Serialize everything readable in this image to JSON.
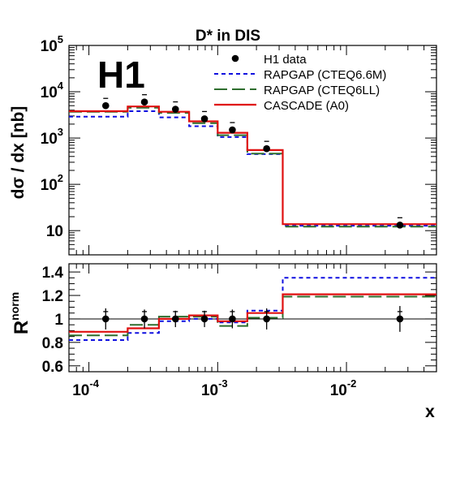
{
  "figure": {
    "title": "D* in DIS",
    "logo": "H1"
  },
  "chart_data": [
    {
      "type": "line",
      "panel": "upper",
      "ylabel": "dσ / dx [nb]",
      "xlabel": "",
      "xscale": "log",
      "yscale": "log",
      "xlim": [
        7e-05,
        0.05
      ],
      "ylim": [
        3.0,
        100000
      ],
      "legend_position": "top-right",
      "bin_edges": [
        7e-05,
        0.0002,
        0.00035,
        0.0006,
        0.001,
        0.0017,
        0.0032,
        0.05
      ],
      "series": [
        {
          "name": "H1 data",
          "style": "points",
          "color": "#000000",
          "x": [
            0.000135,
            0.00027,
            0.00047,
            0.00079,
            0.0013,
            0.0024,
            0.026
          ],
          "y": [
            5000,
            6000,
            4200,
            2600,
            1500,
            590,
            13.2
          ],
          "err_low": [
            4300,
            5300,
            3800,
            2350,
            1350,
            530,
            12.0
          ],
          "err_high": [
            5700,
            6700,
            4600,
            2850,
            1650,
            650,
            14.4
          ]
        },
        {
          "name": "RAPGAP (CTEQ6.6M)",
          "style": "short-dash",
          "color": "#1010e0",
          "values": [
            2900,
            3800,
            2800,
            1800,
            1050,
            450,
            12.8
          ]
        },
        {
          "name": "RAPGAP (CTEQ6LL)",
          "style": "long-dash",
          "color": "#2e6e2e",
          "values": [
            3700,
            4500,
            3500,
            2100,
            1150,
            460,
            12.2
          ]
        },
        {
          "name": "CASCADE (A0)",
          "style": "solid",
          "color": "#e01010",
          "values": [
            3800,
            4800,
            3700,
            2300,
            1300,
            550,
            13.8
          ]
        }
      ],
      "yticks": [
        {
          "value": 10,
          "label": "10"
        },
        {
          "value": 100,
          "label": "10",
          "exp": "2"
        },
        {
          "value": 1000,
          "label": "10",
          "exp": "3"
        },
        {
          "value": 10000,
          "label": "10",
          "exp": "4"
        },
        {
          "value": 100000,
          "label": "10",
          "exp": "5"
        }
      ]
    },
    {
      "type": "line",
      "panel": "lower",
      "ylabel": "R",
      "ylabel_sup": "norm",
      "xlabel": "x",
      "xscale": "log",
      "yscale": "linear",
      "xlim": [
        7e-05,
        0.05
      ],
      "ylim": [
        0.55,
        1.47
      ],
      "reference_line": 1.0,
      "bin_edges": [
        7e-05,
        0.0002,
        0.00035,
        0.0006,
        0.001,
        0.0017,
        0.0032,
        0.05
      ],
      "series": [
        {
          "name": "H1 data",
          "style": "points",
          "color": "#000000",
          "x": [
            0.000135,
            0.00027,
            0.00047,
            0.00079,
            0.0013,
            0.0024,
            0.026
          ],
          "y": [
            1.0,
            1.0,
            1.0,
            1.0,
            1.0,
            1.0,
            1.0
          ],
          "err_low": [
            0.91,
            0.92,
            0.93,
            0.93,
            0.92,
            0.91,
            0.89
          ],
          "err_high": [
            1.09,
            1.08,
            1.07,
            1.07,
            1.08,
            1.09,
            1.11
          ]
        },
        {
          "name": "RAPGAP (CTEQ6.6M)",
          "style": "short-dash",
          "color": "#1010e0",
          "values": [
            0.82,
            0.88,
            0.98,
            1.0,
            0.97,
            1.07,
            1.35
          ]
        },
        {
          "name": "RAPGAP (CTEQ6LL)",
          "style": "long-dash",
          "color": "#2e6e2e",
          "values": [
            0.86,
            0.95,
            1.02,
            1.02,
            0.94,
            1.01,
            1.19
          ]
        },
        {
          "name": "CASCADE (A0)",
          "style": "solid",
          "color": "#e01010",
          "values": [
            0.89,
            0.92,
            1.0,
            1.03,
            0.98,
            1.05,
            1.21
          ]
        }
      ],
      "yticks": [
        {
          "value": 0.6,
          "label": "0.6"
        },
        {
          "value": 0.8,
          "label": "0.8"
        },
        {
          "value": 1.0,
          "label": "1"
        },
        {
          "value": 1.2,
          "label": "1.2"
        },
        {
          "value": 1.4,
          "label": "1.4"
        }
      ],
      "xticks": [
        {
          "value": 0.0001,
          "label": "10",
          "exp": "-4"
        },
        {
          "value": 0.001,
          "label": "10",
          "exp": "-3"
        },
        {
          "value": 0.01,
          "label": "10",
          "exp": "-2"
        }
      ]
    }
  ]
}
